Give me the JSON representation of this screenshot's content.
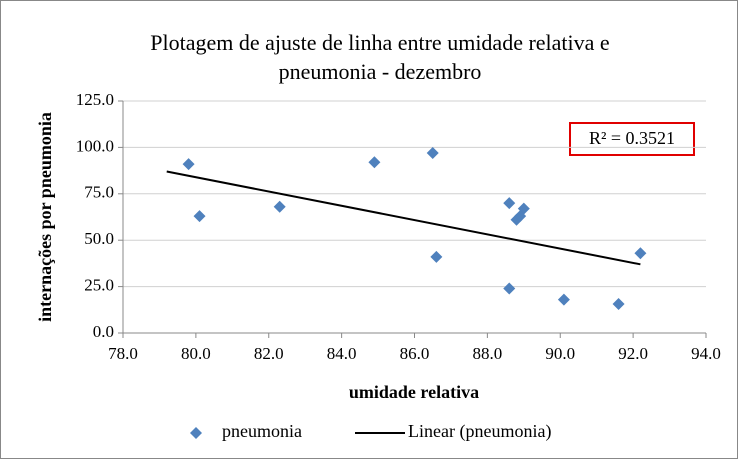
{
  "chart_data": {
    "type": "scatter",
    "title": [
      "Plotagem de ajuste de linha entre umidade relativa  e",
      "pneumonia - dezembro"
    ],
    "x_label": "umidade relativa",
    "y_label": "internações por pneumonia",
    "series": [
      {
        "name": "pneumonia",
        "color": "#4f81bd",
        "x": [
          79.8,
          80.1,
          82.3,
          84.9,
          86.5,
          86.6,
          88.6,
          89.0,
          88.8,
          88.9,
          88.6,
          90.1,
          91.6,
          92.2
        ],
        "values": [
          91,
          63,
          68,
          92,
          97,
          41,
          70,
          67,
          61,
          63,
          24,
          18,
          15.6,
          43
        ]
      }
    ],
    "trendline": {
      "name": "Linear (pneumonia)",
      "color": "#000000",
      "x": [
        79.2,
        92.2
      ],
      "values": [
        87,
        37
      ]
    },
    "annotation": "R² = 0.3521",
    "xlim": [
      78,
      94
    ],
    "xticks": [
      {
        "value": 78,
        "label": "78.0"
      },
      {
        "value": 80,
        "label": "80.0"
      },
      {
        "value": 82,
        "label": "82.0"
      },
      {
        "value": 84,
        "label": "84.0"
      },
      {
        "value": 86,
        "label": "86.0"
      },
      {
        "value": 88,
        "label": "88.0"
      },
      {
        "value": 90,
        "label": "90.0"
      },
      {
        "value": 92,
        "label": "92.0"
      },
      {
        "value": 94,
        "label": "94.0"
      }
    ],
    "ylim": [
      0,
      125
    ],
    "yticks": [
      {
        "value": 0,
        "label": "0.0"
      },
      {
        "value": 25,
        "label": "25.0"
      },
      {
        "value": 50,
        "label": "50.0"
      },
      {
        "value": 75,
        "label": "75.0"
      },
      {
        "value": 100,
        "label": "100.0"
      },
      {
        "value": 125,
        "label": "125.0"
      }
    ],
    "grid": true,
    "legend": "bottom"
  }
}
